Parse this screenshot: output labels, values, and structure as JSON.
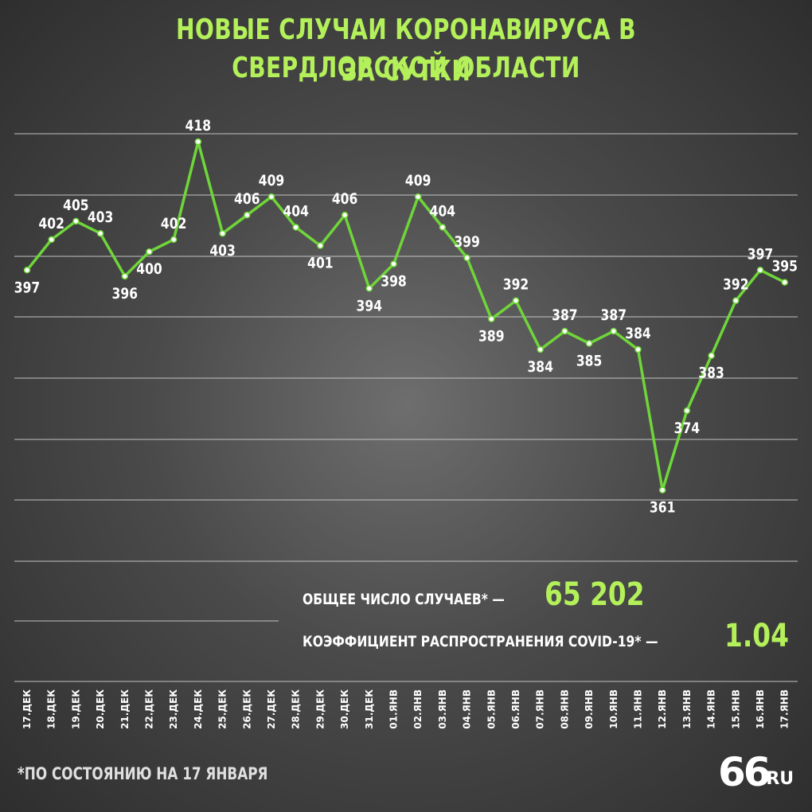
{
  "title": {
    "line1": "НОВЫЕ СЛУЧАИ КОРОНАВИРУСА В СВЕРДЛОВСКОЙ ОБЛАСТИ",
    "line2": "ЗА СУТКИ"
  },
  "stats": {
    "total_label": "ОБЩЕЕ ЧИСЛО СЛУЧАЕВ* —",
    "total_value": "65 202",
    "coef_label": "КОЭФФИЦИЕНТ РАСПРОСТРАНЕНИЯ COVID-19* —",
    "coef_value": "1.04"
  },
  "footnote": "*ПО СОСТОЯНИЮ НА 17 ЯНВАРЯ",
  "logo": {
    "main": "66",
    "domain": ".RU"
  },
  "colors": {
    "accent": "#b3f05a",
    "line": "#6fd63a",
    "grid": "#d0d0d0",
    "text": "#ffffff"
  },
  "chart_data": {
    "type": "line",
    "title": "НОВЫЕ СЛУЧАИ КОРОНАВИРУСА В СВЕРДЛОВСКОЙ ОБЛАСТИ ЗА СУТКИ",
    "categories": [
      "17.ДЕК",
      "18.ДЕК",
      "19.ДЕК",
      "20.ДЕК",
      "21.ДЕК",
      "22.ДЕК",
      "23.ДЕК",
      "24.ДЕК",
      "25.ДЕК",
      "26.ДЕК",
      "27.ДЕК",
      "28.ДЕК",
      "29.ДЕК",
      "30.ДЕК",
      "31.ДЕК",
      "01.ЯНВ",
      "02.ЯНВ",
      "03.ЯНВ",
      "04.ЯНВ",
      "05.ЯНВ",
      "06.ЯНВ",
      "07.ЯНВ",
      "08.ЯНВ",
      "09.ЯНВ",
      "10.ЯНВ",
      "11.ЯНВ",
      "12.ЯНВ",
      "13.ЯНВ",
      "14.ЯНВ",
      "15.ЯНВ",
      "16.ЯНВ",
      "17.ЯНВ"
    ],
    "series": [
      {
        "values": [
          397,
          402,
          405,
          403,
          396,
          400,
          402,
          418,
          403,
          406,
          409,
          404,
          401,
          406,
          394,
          398,
          409,
          404,
          399,
          389,
          392,
          384,
          387,
          385,
          387,
          384,
          361,
          374,
          383,
          392,
          397,
          395
        ]
      }
    ],
    "label_positions": [
      "below",
      "above",
      "above",
      "above",
      "below",
      "below",
      "above",
      "above",
      "below",
      "above",
      "above",
      "above",
      "below",
      "above",
      "below",
      "below",
      "above",
      "above",
      "above",
      "below",
      "above",
      "below",
      "above",
      "below",
      "above",
      "above",
      "below",
      "below",
      "below",
      "above",
      "above",
      "above"
    ],
    "ylim": [
      356,
      424
    ],
    "grid": true,
    "xlabel": "",
    "ylabel": ""
  }
}
